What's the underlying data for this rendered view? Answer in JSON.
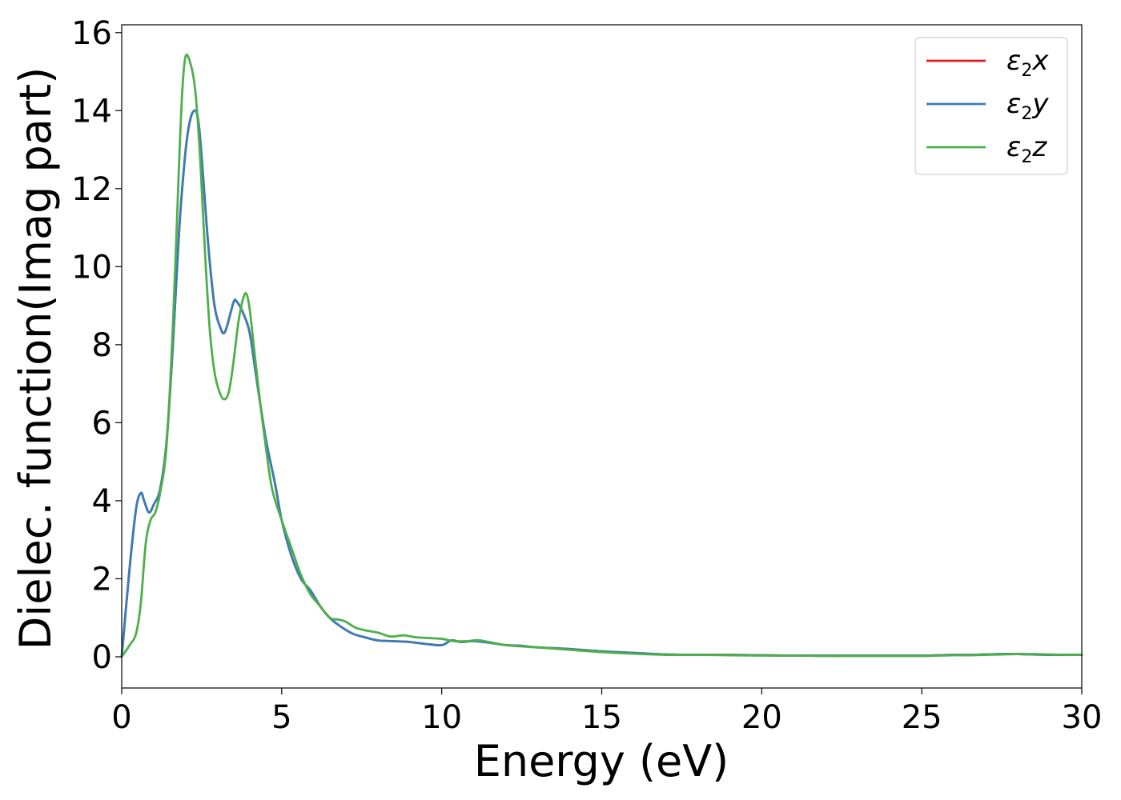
{
  "chart_data": {
    "type": "line",
    "title": "",
    "xlabel": "Energy (eV)",
    "ylabel": "Dielec. function(Imag part)",
    "xlim": [
      0,
      30
    ],
    "ylim": [
      -0.8,
      16.2
    ],
    "xticks": [
      0,
      5,
      10,
      15,
      20,
      25,
      30
    ],
    "yticks": [
      0,
      2,
      4,
      6,
      8,
      10,
      12,
      14,
      16
    ],
    "grid": false,
    "legend_position": "top-right",
    "series": [
      {
        "name": "ε2x",
        "legend_symbol": "ε",
        "legend_sub": "2",
        "legend_suffix": "x",
        "color": "#e41a1c",
        "x": [
          0,
          0.25,
          0.45,
          0.6,
          0.7,
          0.85,
          1.0,
          1.2,
          1.4,
          1.6,
          1.8,
          2.0,
          2.15,
          2.3,
          2.4,
          2.5,
          2.7,
          2.9,
          3.1,
          3.2,
          3.3,
          3.5,
          3.6,
          3.8,
          4.0,
          4.2,
          4.5,
          4.8,
          5.0,
          5.3,
          5.6,
          5.9,
          6.2,
          6.5,
          6.8,
          7.2,
          7.6,
          8.0,
          8.5,
          9.0,
          9.5,
          10.0,
          10.3,
          10.6,
          11.0,
          11.5,
          12.0,
          12.5,
          13.0,
          14.0,
          15.0,
          16.0,
          17.0,
          18.0,
          19.0,
          20.0,
          21.0,
          22.0,
          23.0,
          24.0,
          25.0,
          25.5,
          26.0,
          26.5,
          27.0,
          27.5,
          28.0,
          28.5,
          29.0,
          29.5,
          30.0
        ],
        "y": [
          0.0,
          2.3,
          3.8,
          4.2,
          4.0,
          3.7,
          3.9,
          4.3,
          5.5,
          8.0,
          11.0,
          13.0,
          13.8,
          14.0,
          13.7,
          12.8,
          10.6,
          9.0,
          8.4,
          8.3,
          8.5,
          9.1,
          9.1,
          8.8,
          8.3,
          7.2,
          5.6,
          4.4,
          3.5,
          2.6,
          2.0,
          1.7,
          1.3,
          1.0,
          0.8,
          0.6,
          0.5,
          0.42,
          0.4,
          0.38,
          0.33,
          0.3,
          0.42,
          0.38,
          0.4,
          0.36,
          0.3,
          0.28,
          0.24,
          0.2,
          0.14,
          0.1,
          0.06,
          0.05,
          0.05,
          0.04,
          0.03,
          0.03,
          0.03,
          0.03,
          0.03,
          0.04,
          0.05,
          0.05,
          0.06,
          0.07,
          0.07,
          0.06,
          0.05,
          0.05,
          0.05
        ]
      },
      {
        "name": "ε2y",
        "legend_symbol": "ε",
        "legend_sub": "2",
        "legend_suffix": "y",
        "color": "#377eb8",
        "x": [
          0,
          0.25,
          0.45,
          0.6,
          0.7,
          0.85,
          1.0,
          1.2,
          1.4,
          1.6,
          1.8,
          2.0,
          2.15,
          2.3,
          2.4,
          2.5,
          2.7,
          2.9,
          3.1,
          3.2,
          3.3,
          3.5,
          3.6,
          3.8,
          4.0,
          4.2,
          4.5,
          4.8,
          5.0,
          5.3,
          5.6,
          5.9,
          6.2,
          6.5,
          6.8,
          7.2,
          7.6,
          8.0,
          8.5,
          9.0,
          9.5,
          10.0,
          10.3,
          10.6,
          11.0,
          11.5,
          12.0,
          12.5,
          13.0,
          14.0,
          15.0,
          16.0,
          17.0,
          18.0,
          19.0,
          20.0,
          21.0,
          22.0,
          23.0,
          24.0,
          25.0,
          25.5,
          26.0,
          26.5,
          27.0,
          27.5,
          28.0,
          28.5,
          29.0,
          29.5,
          30.0
        ],
        "y": [
          0.0,
          2.3,
          3.8,
          4.2,
          4.0,
          3.7,
          3.9,
          4.3,
          5.5,
          8.0,
          11.0,
          13.0,
          13.8,
          14.0,
          13.7,
          12.8,
          10.6,
          9.0,
          8.4,
          8.3,
          8.5,
          9.1,
          9.1,
          8.8,
          8.3,
          7.2,
          5.6,
          4.4,
          3.5,
          2.6,
          2.0,
          1.7,
          1.3,
          1.0,
          0.8,
          0.6,
          0.5,
          0.42,
          0.4,
          0.38,
          0.33,
          0.3,
          0.42,
          0.38,
          0.4,
          0.36,
          0.3,
          0.28,
          0.24,
          0.2,
          0.14,
          0.1,
          0.06,
          0.05,
          0.05,
          0.04,
          0.03,
          0.03,
          0.03,
          0.03,
          0.03,
          0.04,
          0.05,
          0.05,
          0.06,
          0.07,
          0.07,
          0.06,
          0.05,
          0.05,
          0.05
        ]
      },
      {
        "name": "ε2z",
        "legend_symbol": "ε",
        "legend_sub": "2",
        "legend_suffix": "z",
        "color": "#4daf4a",
        "x": [
          0,
          0.25,
          0.45,
          0.6,
          0.75,
          0.9,
          1.05,
          1.2,
          1.4,
          1.6,
          1.8,
          1.9,
          2.0,
          2.15,
          2.3,
          2.45,
          2.6,
          2.75,
          2.9,
          3.05,
          3.2,
          3.35,
          3.5,
          3.65,
          3.8,
          3.9,
          4.0,
          4.15,
          4.3,
          4.5,
          4.7,
          5.0,
          5.3,
          5.6,
          5.9,
          6.2,
          6.5,
          6.8,
          7.0,
          7.3,
          7.6,
          8.0,
          8.4,
          8.8,
          9.2,
          9.6,
          10.0,
          10.4,
          10.8,
          11.2,
          12.0,
          13.0,
          14.0,
          15.0,
          16.0,
          17.0,
          18.0,
          19.0,
          20.0,
          21.0,
          22.0,
          23.0,
          24.0,
          25.0,
          25.5,
          26.0,
          26.5,
          27.0,
          27.5,
          28.0,
          28.5,
          29.0,
          29.5,
          30.0
        ],
        "y": [
          0.0,
          0.3,
          0.6,
          1.4,
          2.9,
          3.5,
          3.7,
          4.2,
          5.4,
          8.5,
          12.8,
          14.6,
          15.4,
          15.2,
          14.5,
          12.8,
          10.4,
          8.4,
          7.3,
          6.8,
          6.6,
          6.8,
          7.6,
          8.6,
          9.2,
          9.3,
          8.9,
          7.8,
          6.7,
          5.4,
          4.3,
          3.5,
          2.8,
          2.1,
          1.6,
          1.3,
          1.0,
          0.95,
          0.9,
          0.75,
          0.68,
          0.62,
          0.52,
          0.55,
          0.5,
          0.48,
          0.46,
          0.4,
          0.4,
          0.42,
          0.3,
          0.24,
          0.18,
          0.12,
          0.08,
          0.05,
          0.05,
          0.04,
          0.03,
          0.03,
          0.02,
          0.02,
          0.02,
          0.02,
          0.03,
          0.04,
          0.04,
          0.05,
          0.06,
          0.07,
          0.07,
          0.06,
          0.05,
          0.05
        ]
      }
    ]
  }
}
